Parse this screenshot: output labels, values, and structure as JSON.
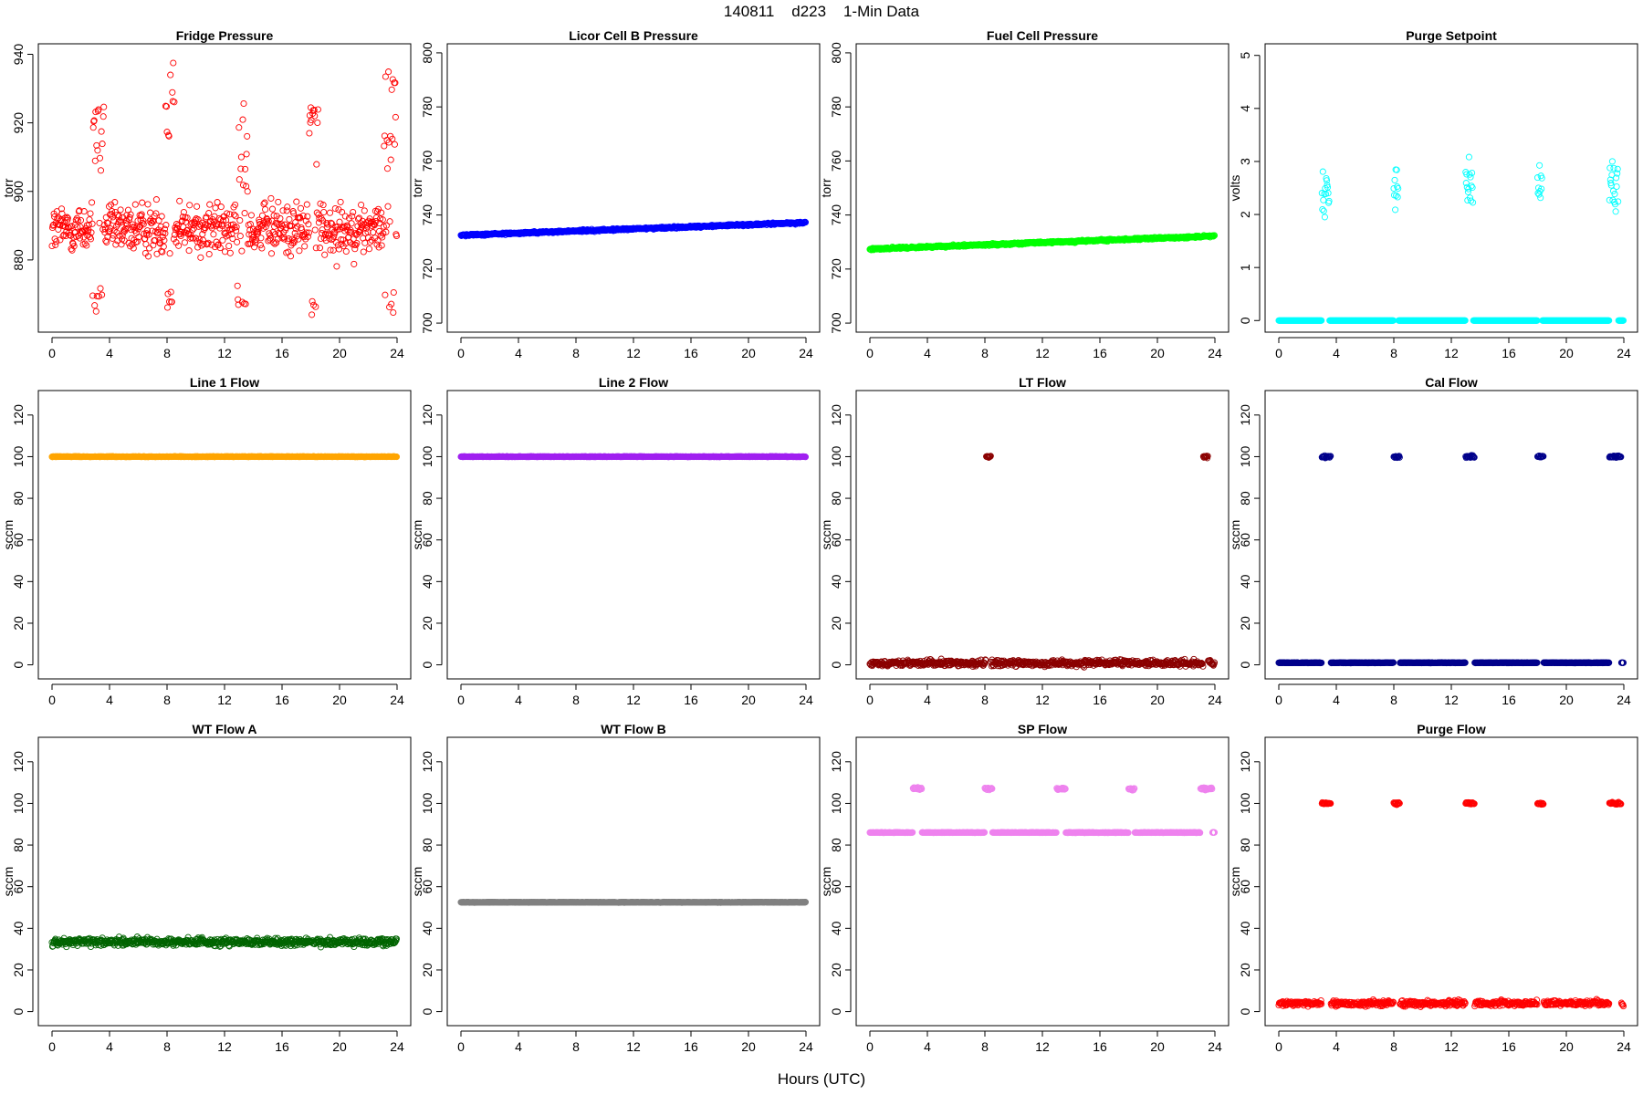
{
  "figure": {
    "title": "140811    d223    1-Min Data",
    "xlabel": "Hours (UTC)"
  },
  "chart_data": [
    {
      "type": "scatter",
      "title": "Fridge Pressure",
      "ylabel": "torr",
      "color": "#ff0000",
      "marker": "open-circle",
      "xlim": [
        0,
        24
      ],
      "xticks": [
        0,
        4,
        8,
        12,
        16,
        20,
        24
      ],
      "ylim": [
        860,
        942
      ],
      "yticks": [
        880,
        900,
        920,
        940
      ],
      "series_desc": {
        "base": 889,
        "noise": 6,
        "events": [
          {
            "start": 2.8,
            "end": 3.6,
            "high": [
              905,
              925
            ],
            "low": [
              865,
              872
            ]
          },
          {
            "start": 7.9,
            "end": 8.5,
            "high": [
              915,
              938
            ],
            "low": [
              866,
              872
            ]
          },
          {
            "start": 12.9,
            "end": 13.6,
            "high": [
              900,
              928
            ],
            "low": [
              866,
              873
            ]
          },
          {
            "start": 17.9,
            "end": 18.5,
            "high": [
              900,
              927
            ],
            "low": [
              864,
              869
            ]
          },
          {
            "start": 23.1,
            "end": 23.9,
            "high": [
              905,
              937
            ],
            "low": [
              863,
              873
            ]
          }
        ]
      }
    },
    {
      "type": "scatter",
      "title": "Licor Cell B Pressure",
      "ylabel": "torr",
      "color": "#0000ff",
      "marker": "open-circle",
      "xlim": [
        0,
        24
      ],
      "xticks": [
        0,
        4,
        8,
        12,
        16,
        20,
        24
      ],
      "ylim": [
        698,
        802
      ],
      "yticks": [
        700,
        720,
        740,
        760,
        780,
        800
      ],
      "series_desc": {
        "start": 732.5,
        "end": 737.2,
        "noise": 0.3
      }
    },
    {
      "type": "scatter",
      "title": "Fuel Cell Pressure",
      "ylabel": "torr",
      "color": "#00ff00",
      "marker": "open-circle",
      "xlim": [
        0,
        24
      ],
      "xticks": [
        0,
        4,
        8,
        12,
        16,
        20,
        24
      ],
      "ylim": [
        698,
        802
      ],
      "yticks": [
        700,
        720,
        740,
        760,
        780,
        800
      ],
      "series_desc": {
        "start": 727.4,
        "end": 732.2,
        "noise": 0.3
      }
    },
    {
      "type": "scatter",
      "title": "Purge Setpoint",
      "ylabel": "volts",
      "color": "#00ffff",
      "marker": "open-circle",
      "xlim": [
        0,
        24
      ],
      "xticks": [
        0,
        4,
        8,
        12,
        16,
        20,
        24
      ],
      "ylim": [
        -0.15,
        5.15
      ],
      "yticks": [
        0,
        1,
        2,
        3,
        4,
        5
      ],
      "series_desc": {
        "base": 0,
        "noise": 0,
        "events": [
          {
            "start": 3.0,
            "end": 3.5,
            "value": 2.5
          },
          {
            "start": 8.0,
            "end": 8.3,
            "value": 2.48
          },
          {
            "start": 13.0,
            "end": 13.5,
            "value": 2.5
          },
          {
            "start": 18.0,
            "end": 18.3,
            "value": 2.48
          },
          {
            "start": 23.0,
            "end": 23.6,
            "value": 2.5
          }
        ]
      }
    },
    {
      "type": "scatter",
      "title": "Line 1 Flow",
      "ylabel": "sccm",
      "color": "#ffa500",
      "marker": "open-circle",
      "xlim": [
        0,
        24
      ],
      "xticks": [
        0,
        4,
        8,
        12,
        16,
        20,
        24
      ],
      "ylim": [
        -5,
        130
      ],
      "yticks": [
        0,
        20,
        40,
        60,
        80,
        100,
        120
      ],
      "series_desc": {
        "base": 100,
        "noise": 0.1
      }
    },
    {
      "type": "scatter",
      "title": "Line 2 Flow",
      "ylabel": "sccm",
      "color": "#a020f0",
      "marker": "open-circle",
      "xlim": [
        0,
        24
      ],
      "xticks": [
        0,
        4,
        8,
        12,
        16,
        20,
        24
      ],
      "ylim": [
        -5,
        130
      ],
      "yticks": [
        0,
        20,
        40,
        60,
        80,
        100,
        120
      ],
      "series_desc": {
        "base": 100,
        "noise": 0.1
      }
    },
    {
      "type": "scatter",
      "title": "LT Flow",
      "ylabel": "sccm",
      "color": "#8b0000",
      "marker": "open-circle",
      "xlim": [
        0,
        24
      ],
      "xticks": [
        0,
        4,
        8,
        12,
        16,
        20,
        24
      ],
      "ylim": [
        -5,
        130
      ],
      "yticks": [
        0,
        20,
        40,
        60,
        80,
        100,
        120
      ],
      "series_desc": {
        "base": 0.8,
        "noise": 1.2,
        "events": [
          {
            "start": 8.1,
            "end": 8.4,
            "value": 100
          },
          {
            "start": 23.2,
            "end": 23.5,
            "value": 100
          }
        ]
      }
    },
    {
      "type": "scatter",
      "title": "Cal Flow",
      "ylabel": "sccm",
      "color": "#00008b",
      "marker": "open-circle",
      "xlim": [
        0,
        24
      ],
      "xticks": [
        0,
        4,
        8,
        12,
        16,
        20,
        24
      ],
      "ylim": [
        -5,
        130
      ],
      "yticks": [
        0,
        20,
        40,
        60,
        80,
        100,
        120
      ],
      "series_desc": {
        "base": 1,
        "noise": 0.1,
        "events": [
          {
            "start": 3.0,
            "end": 3.6,
            "value": 100
          },
          {
            "start": 8.0,
            "end": 8.4,
            "value": 100
          },
          {
            "start": 13.0,
            "end": 13.6,
            "value": 100
          },
          {
            "start": 18.0,
            "end": 18.4,
            "value": 100
          },
          {
            "start": 23.0,
            "end": 23.8,
            "value": 100
          }
        ]
      }
    },
    {
      "type": "scatter",
      "title": "WT Flow A",
      "ylabel": "sccm",
      "color": "#006400",
      "marker": "open-circle",
      "xlim": [
        0,
        24
      ],
      "xticks": [
        0,
        4,
        8,
        12,
        16,
        20,
        24
      ],
      "ylim": [
        -5,
        130
      ],
      "yticks": [
        0,
        20,
        40,
        60,
        80,
        100,
        120
      ],
      "series_desc": {
        "base": 33.5,
        "noise": 1.5
      }
    },
    {
      "type": "scatter",
      "title": "WT Flow B",
      "ylabel": "sccm",
      "color": "#808080",
      "marker": "open-circle",
      "xlim": [
        0,
        24
      ],
      "xticks": [
        0,
        4,
        8,
        12,
        16,
        20,
        24
      ],
      "ylim": [
        -5,
        130
      ],
      "yticks": [
        0,
        20,
        40,
        60,
        80,
        100,
        120
      ],
      "series_desc": {
        "base": 52.5,
        "noise": 0.1
      }
    },
    {
      "type": "scatter",
      "title": "SP Flow",
      "ylabel": "sccm",
      "color": "#ee82ee",
      "marker": "open-circle",
      "xlim": [
        0,
        24
      ],
      "xticks": [
        0,
        4,
        8,
        12,
        16,
        20,
        24
      ],
      "ylim": [
        -5,
        130
      ],
      "yticks": [
        0,
        20,
        40,
        60,
        80,
        100,
        120
      ],
      "series_desc": {
        "base": 86,
        "noise": 0.1,
        "events": [
          {
            "start": 3.0,
            "end": 3.6,
            "value": 107
          },
          {
            "start": 8.0,
            "end": 8.5,
            "value": 107
          },
          {
            "start": 13.0,
            "end": 13.6,
            "value": 107
          },
          {
            "start": 18.0,
            "end": 18.4,
            "value": 107
          },
          {
            "start": 23.0,
            "end": 23.8,
            "value": 107
          }
        ]
      }
    },
    {
      "type": "scatter",
      "title": "Purge Flow",
      "ylabel": "sccm",
      "color": "#ff0000",
      "marker": "open-circle",
      "xlim": [
        0,
        24
      ],
      "xticks": [
        0,
        4,
        8,
        12,
        16,
        20,
        24
      ],
      "ylim": [
        -5,
        130
      ],
      "yticks": [
        0,
        20,
        40,
        60,
        80,
        100,
        120
      ],
      "series_desc": {
        "base": 4,
        "noise": 1.1,
        "events": [
          {
            "start": 3.0,
            "end": 3.6,
            "value": 100
          },
          {
            "start": 8.0,
            "end": 8.4,
            "value": 100
          },
          {
            "start": 13.0,
            "end": 13.6,
            "value": 100
          },
          {
            "start": 18.0,
            "end": 18.4,
            "value": 100
          },
          {
            "start": 23.0,
            "end": 23.8,
            "value": 100
          }
        ]
      }
    }
  ]
}
